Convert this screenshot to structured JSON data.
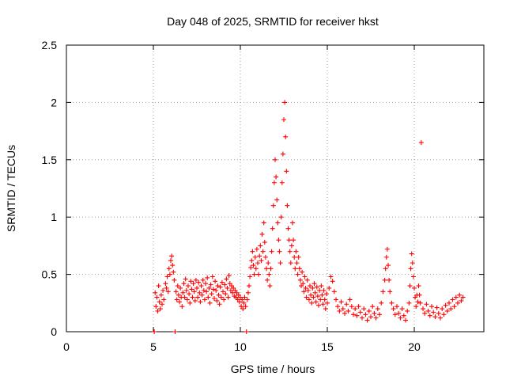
{
  "chart_data": {
    "type": "scatter",
    "title": "Day 048 of 2025, SRMTID for receiver hkst",
    "xlabel": "GPS time / hours",
    "ylabel": "SRMTID / TECUs",
    "xlim": [
      0,
      24
    ],
    "ylim": [
      0,
      2.5
    ],
    "xticks": [
      0,
      5,
      10,
      15,
      20
    ],
    "xtick_labels": [
      "0",
      "5",
      "10",
      "15",
      "20"
    ],
    "yticks": [
      0,
      0.5,
      1,
      1.5,
      2,
      2.5
    ],
    "ytick_labels": [
      "0",
      "0.5",
      "1",
      "1.5",
      "2",
      "2.5"
    ],
    "grid": true,
    "marker": "+",
    "series": [
      {
        "name": "SRMTID",
        "color": "#ff0000",
        "points": [
          [
            5.05,
            0.0
          ],
          [
            6.25,
            0.0
          ],
          [
            10.35,
            0.0
          ],
          [
            5.1,
            0.34
          ],
          [
            5.15,
            0.22
          ],
          [
            5.2,
            0.3
          ],
          [
            5.25,
            0.18
          ],
          [
            5.3,
            0.4
          ],
          [
            5.35,
            0.26
          ],
          [
            5.4,
            0.2
          ],
          [
            5.45,
            0.32
          ],
          [
            5.5,
            0.24
          ],
          [
            5.55,
            0.36
          ],
          [
            5.6,
            0.28
          ],
          [
            5.7,
            0.42
          ],
          [
            5.75,
            0.38
          ],
          [
            5.8,
            0.48
          ],
          [
            5.85,
            0.35
          ],
          [
            5.9,
            0.55
          ],
          [
            5.95,
            0.5
          ],
          [
            6.0,
            0.62
          ],
          [
            6.05,
            0.66
          ],
          [
            6.1,
            0.58
          ],
          [
            6.15,
            0.52
          ],
          [
            6.2,
            0.45
          ],
          [
            6.3,
            0.35
          ],
          [
            6.35,
            0.28
          ],
          [
            6.4,
            0.4
          ],
          [
            6.45,
            0.32
          ],
          [
            6.5,
            0.26
          ],
          [
            6.55,
            0.38
          ],
          [
            6.6,
            0.3
          ],
          [
            6.65,
            0.22
          ],
          [
            6.7,
            0.34
          ],
          [
            6.75,
            0.42
          ],
          [
            6.8,
            0.3
          ],
          [
            6.85,
            0.46
          ],
          [
            6.9,
            0.36
          ],
          [
            6.95,
            0.28
          ],
          [
            7.0,
            0.4
          ],
          [
            7.05,
            0.33
          ],
          [
            7.1,
            0.25
          ],
          [
            7.15,
            0.44
          ],
          [
            7.2,
            0.37
          ],
          [
            7.25,
            0.3
          ],
          [
            7.3,
            0.42
          ],
          [
            7.35,
            0.35
          ],
          [
            7.4,
            0.27
          ],
          [
            7.45,
            0.45
          ],
          [
            7.5,
            0.38
          ],
          [
            7.55,
            0.3
          ],
          [
            7.6,
            0.43
          ],
          [
            7.65,
            0.34
          ],
          [
            7.7,
            0.26
          ],
          [
            7.75,
            0.4
          ],
          [
            7.8,
            0.32
          ],
          [
            7.85,
            0.45
          ],
          [
            7.9,
            0.36
          ],
          [
            7.95,
            0.28
          ],
          [
            8.0,
            0.42
          ],
          [
            8.05,
            0.35
          ],
          [
            8.1,
            0.47
          ],
          [
            8.15,
            0.3
          ],
          [
            8.2,
            0.38
          ],
          [
            8.25,
            0.25
          ],
          [
            8.3,
            0.41
          ],
          [
            8.35,
            0.33
          ],
          [
            8.4,
            0.48
          ],
          [
            8.45,
            0.37
          ],
          [
            8.5,
            0.29
          ],
          [
            8.55,
            0.44
          ],
          [
            8.6,
            0.36
          ],
          [
            8.65,
            0.27
          ],
          [
            8.7,
            0.4
          ],
          [
            8.75,
            0.32
          ],
          [
            8.8,
            0.24
          ],
          [
            8.85,
            0.39
          ],
          [
            8.9,
            0.3
          ],
          [
            8.95,
            0.43
          ],
          [
            9.0,
            0.35
          ],
          [
            9.05,
            0.28
          ],
          [
            9.1,
            0.41
          ],
          [
            9.15,
            0.33
          ],
          [
            9.2,
            0.46
          ],
          [
            9.25,
            0.38
          ],
          [
            9.3,
            0.3
          ],
          [
            9.35,
            0.49
          ],
          [
            9.4,
            0.42
          ],
          [
            9.45,
            0.36
          ],
          [
            9.5,
            0.4
          ],
          [
            9.55,
            0.34
          ],
          [
            9.6,
            0.38
          ],
          [
            9.65,
            0.31
          ],
          [
            9.7,
            0.36
          ],
          [
            9.75,
            0.3
          ],
          [
            9.8,
            0.34
          ],
          [
            9.85,
            0.28
          ],
          [
            9.9,
            0.32
          ],
          [
            9.95,
            0.26
          ],
          [
            10.0,
            0.3
          ],
          [
            10.05,
            0.22
          ],
          [
            10.1,
            0.28
          ],
          [
            10.15,
            0.2
          ],
          [
            10.2,
            0.25
          ],
          [
            10.25,
            0.3
          ],
          [
            10.3,
            0.22
          ],
          [
            10.4,
            0.28
          ],
          [
            10.45,
            0.34
          ],
          [
            10.5,
            0.4
          ],
          [
            10.55,
            0.48
          ],
          [
            10.6,
            0.56
          ],
          [
            10.65,
            0.62
          ],
          [
            10.7,
            0.7
          ],
          [
            10.75,
            0.58
          ],
          [
            10.8,
            0.5
          ],
          [
            10.85,
            0.65
          ],
          [
            10.9,
            0.55
          ],
          [
            10.95,
            0.72
          ],
          [
            11.0,
            0.6
          ],
          [
            11.05,
            0.5
          ],
          [
            11.1,
            0.66
          ],
          [
            11.15,
            0.75
          ],
          [
            11.2,
            0.62
          ],
          [
            11.25,
            0.85
          ],
          [
            11.3,
            0.7
          ],
          [
            11.35,
            0.95
          ],
          [
            11.4,
            0.78
          ],
          [
            11.45,
            0.65
          ],
          [
            11.5,
            0.55
          ],
          [
            11.55,
            0.45
          ],
          [
            11.6,
            0.6
          ],
          [
            11.65,
            0.5
          ],
          [
            11.7,
            0.4
          ],
          [
            11.75,
            0.55
          ],
          [
            11.8,
            0.7
          ],
          [
            11.85,
            0.9
          ],
          [
            11.9,
            1.1
          ],
          [
            11.95,
            1.3
          ],
          [
            12.0,
            1.5
          ],
          [
            12.05,
            1.35
          ],
          [
            12.1,
            1.15
          ],
          [
            12.15,
            0.95
          ],
          [
            12.2,
            0.8
          ],
          [
            12.25,
            0.7
          ],
          [
            12.3,
            0.6
          ],
          [
            12.35,
            1.0
          ],
          [
            12.4,
            1.3
          ],
          [
            12.45,
            1.55
          ],
          [
            12.5,
            1.85
          ],
          [
            12.55,
            2.0
          ],
          [
            12.6,
            1.7
          ],
          [
            12.65,
            1.4
          ],
          [
            12.7,
            1.1
          ],
          [
            12.75,
            0.9
          ],
          [
            12.8,
            0.8
          ],
          [
            12.85,
            0.7
          ],
          [
            12.9,
            0.6
          ],
          [
            12.95,
            0.75
          ],
          [
            13.0,
            0.95
          ],
          [
            13.05,
            0.8
          ],
          [
            13.1,
            0.65
          ],
          [
            13.15,
            0.55
          ],
          [
            13.2,
            0.7
          ],
          [
            13.25,
            0.6
          ],
          [
            13.3,
            0.5
          ],
          [
            13.35,
            0.65
          ],
          [
            13.4,
            0.55
          ],
          [
            13.45,
            0.45
          ],
          [
            13.5,
            0.4
          ],
          [
            13.55,
            0.52
          ],
          [
            13.6,
            0.42
          ],
          [
            13.65,
            0.35
          ],
          [
            13.7,
            0.48
          ],
          [
            13.75,
            0.38
          ],
          [
            13.8,
            0.3
          ],
          [
            13.85,
            0.45
          ],
          [
            13.9,
            0.36
          ],
          [
            13.95,
            0.28
          ],
          [
            14.0,
            0.4
          ],
          [
            14.05,
            0.32
          ],
          [
            14.1,
            0.25
          ],
          [
            14.15,
            0.38
          ],
          [
            14.2,
            0.3
          ],
          [
            14.25,
            0.42
          ],
          [
            14.3,
            0.34
          ],
          [
            14.35,
            0.26
          ],
          [
            14.4,
            0.39
          ],
          [
            14.45,
            0.31
          ],
          [
            14.5,
            0.23
          ],
          [
            14.55,
            0.36
          ],
          [
            14.6,
            0.28
          ],
          [
            14.65,
            0.4
          ],
          [
            14.7,
            0.32
          ],
          [
            14.75,
            0.24
          ],
          [
            14.8,
            0.36
          ],
          [
            14.85,
            0.28
          ],
          [
            14.9,
            0.2
          ],
          [
            14.95,
            0.33
          ],
          [
            15.0,
            0.25
          ],
          [
            15.1,
            0.38
          ],
          [
            15.2,
            0.48
          ],
          [
            15.3,
            0.44
          ],
          [
            15.4,
            0.35
          ],
          [
            15.5,
            0.28
          ],
          [
            15.6,
            0.22
          ],
          [
            15.7,
            0.18
          ],
          [
            15.8,
            0.26
          ],
          [
            15.9,
            0.2
          ],
          [
            16.0,
            0.16
          ],
          [
            16.1,
            0.24
          ],
          [
            16.2,
            0.18
          ],
          [
            16.3,
            0.28
          ],
          [
            16.4,
            0.22
          ],
          [
            16.5,
            0.15
          ],
          [
            16.6,
            0.2
          ],
          [
            16.7,
            0.14
          ],
          [
            16.8,
            0.22
          ],
          [
            16.9,
            0.17
          ],
          [
            17.0,
            0.12
          ],
          [
            17.1,
            0.2
          ],
          [
            17.2,
            0.15
          ],
          [
            17.3,
            0.1
          ],
          [
            17.4,
            0.18
          ],
          [
            17.5,
            0.13
          ],
          [
            17.6,
            0.22
          ],
          [
            17.7,
            0.16
          ],
          [
            17.8,
            0.12
          ],
          [
            17.9,
            0.2
          ],
          [
            18.0,
            0.15
          ],
          [
            18.1,
            0.25
          ],
          [
            18.2,
            0.35
          ],
          [
            18.3,
            0.45
          ],
          [
            18.35,
            0.55
          ],
          [
            18.4,
            0.65
          ],
          [
            18.45,
            0.72
          ],
          [
            18.5,
            0.58
          ],
          [
            18.55,
            0.45
          ],
          [
            18.6,
            0.35
          ],
          [
            18.7,
            0.25
          ],
          [
            18.8,
            0.2
          ],
          [
            18.9,
            0.15
          ],
          [
            19.0,
            0.22
          ],
          [
            19.1,
            0.16
          ],
          [
            19.2,
            0.12
          ],
          [
            19.3,
            0.2
          ],
          [
            19.4,
            0.14
          ],
          [
            19.5,
            0.1
          ],
          [
            19.6,
            0.18
          ],
          [
            19.7,
            0.25
          ],
          [
            19.75,
            0.4
          ],
          [
            19.8,
            0.55
          ],
          [
            19.85,
            0.68
          ],
          [
            19.9,
            0.6
          ],
          [
            19.95,
            0.48
          ],
          [
            20.0,
            0.38
          ],
          [
            20.05,
            0.3
          ],
          [
            20.1,
            0.22
          ],
          [
            20.15,
            0.32
          ],
          [
            20.2,
            0.26
          ],
          [
            20.25,
            0.4
          ],
          [
            20.3,
            0.32
          ],
          [
            20.35,
            0.25
          ],
          [
            20.4,
            1.65
          ],
          [
            20.5,
            0.2
          ],
          [
            20.6,
            0.16
          ],
          [
            20.7,
            0.24
          ],
          [
            20.8,
            0.18
          ],
          [
            20.9,
            0.14
          ],
          [
            21.0,
            0.22
          ],
          [
            21.1,
            0.17
          ],
          [
            21.2,
            0.13
          ],
          [
            21.3,
            0.21
          ],
          [
            21.4,
            0.16
          ],
          [
            21.5,
            0.12
          ],
          [
            21.6,
            0.2
          ],
          [
            21.7,
            0.15
          ],
          [
            21.8,
            0.23
          ],
          [
            21.9,
            0.18
          ],
          [
            22.0,
            0.25
          ],
          [
            22.1,
            0.2
          ],
          [
            22.2,
            0.28
          ],
          [
            22.3,
            0.22
          ],
          [
            22.4,
            0.3
          ],
          [
            22.5,
            0.25
          ],
          [
            22.6,
            0.32
          ],
          [
            22.7,
            0.27
          ],
          [
            22.8,
            0.3
          ]
        ]
      }
    ]
  }
}
